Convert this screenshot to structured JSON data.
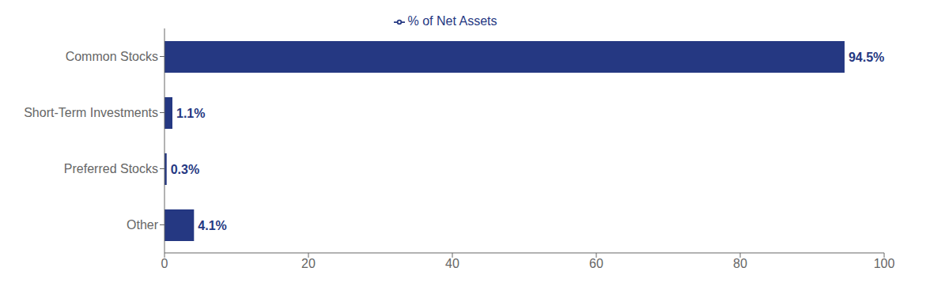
{
  "chart_data": {
    "type": "bar",
    "orientation": "horizontal",
    "categories": [
      "Common Stocks",
      "Short-Term Investments",
      "Preferred Stocks",
      "Other"
    ],
    "series": [
      {
        "name": "% of Net Assets",
        "color": "#253882",
        "values": [
          94.5,
          1.1,
          0.3,
          4.1
        ],
        "value_labels": [
          "94.5%",
          "1.1%",
          "0.3%",
          "4.1%"
        ]
      }
    ],
    "data_labels": true,
    "xlim": [
      0,
      100
    ],
    "xticks": [
      0,
      20,
      40,
      60,
      80,
      100
    ],
    "grid": false,
    "legend": "top"
  }
}
